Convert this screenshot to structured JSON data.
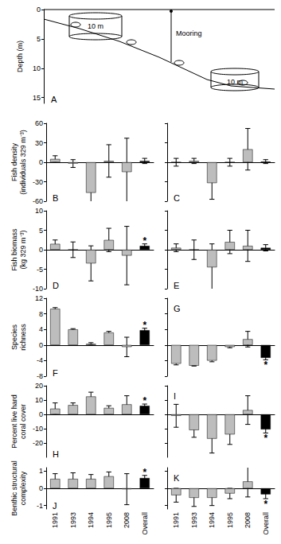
{
  "chart_data": [
    {
      "type": "diagram",
      "title": "A",
      "y_label": "Depth (m)",
      "ylim": [
        0,
        16
      ],
      "yticks": [
        0,
        5,
        10,
        15
      ],
      "annotations": [
        "10 m",
        "10 m",
        "Mooring"
      ],
      "grid": false
    },
    {
      "type": "bar",
      "title": "B",
      "y_label": "Fish density\n(individuals 329 m⁻³)",
      "categories": [
        "1991",
        "1993",
        "1994",
        "1995",
        "2008",
        "Overall"
      ],
      "values": [
        5,
        -2,
        -47,
        2,
        -15,
        2
      ],
      "errors": [
        5,
        6,
        30,
        25,
        52,
        4
      ],
      "colors": [
        "#bdbdbd",
        "#bdbdbd",
        "#bdbdbd",
        "#bdbdbd",
        "#bdbdbd",
        "#000000"
      ],
      "ylim": [
        -60,
        60
      ],
      "yticks": [
        -60,
        -30,
        0,
        30,
        60
      ],
      "grid": false,
      "tick_labels": "y"
    },
    {
      "type": "bar",
      "title": "C",
      "categories": [
        "1991",
        "1993",
        "1994",
        "1995",
        "2008",
        "Overall"
      ],
      "values": [
        0,
        2,
        -32,
        0,
        20,
        1
      ],
      "errors": [
        6,
        4,
        25,
        6,
        32,
        3
      ],
      "colors": [
        "#bdbdbd",
        "#bdbdbd",
        "#bdbdbd",
        "#bdbdbd",
        "#bdbdbd",
        "#000000"
      ],
      "ylim": [
        -60,
        60
      ],
      "yticks": [
        -60,
        -30,
        0,
        30,
        60
      ],
      "grid": false,
      "tick_labels": false
    },
    {
      "type": "bar",
      "title": "D",
      "y_label": "Fish biomass\n(kg 329 m⁻³)",
      "categories": [
        "1991",
        "1993",
        "1994",
        "1995",
        "2008",
        "Overall"
      ],
      "values": [
        1.5,
        0,
        -3.5,
        2.5,
        -1.5,
        1
      ],
      "errors": [
        1,
        2,
        4.5,
        3,
        7.5,
        0.5
      ],
      "colors": [
        "#bdbdbd",
        "#bdbdbd",
        "#bdbdbd",
        "#bdbdbd",
        "#bdbdbd",
        "#000000"
      ],
      "annotations": [
        {
          "category": "Overall",
          "text": "*"
        }
      ],
      "ylim": [
        -10,
        10
      ],
      "yticks": [
        -10,
        -5,
        0,
        5,
        10
      ],
      "grid": false,
      "tick_labels": "y"
    },
    {
      "type": "bar",
      "title": "E",
      "categories": [
        "1991",
        "1993",
        "1994",
        "1995",
        "2008",
        "Overall"
      ],
      "values": [
        0.5,
        0,
        -4.5,
        2,
        1,
        0.5
      ],
      "errors": [
        1,
        2.5,
        6,
        3,
        4,
        0.8
      ],
      "colors": [
        "#bdbdbd",
        "#bdbdbd",
        "#bdbdbd",
        "#bdbdbd",
        "#bdbdbd",
        "#000000"
      ],
      "ylim": [
        -10,
        10
      ],
      "yticks": [
        -10,
        -5,
        0,
        5,
        10
      ],
      "grid": false,
      "tick_labels": false
    },
    {
      "type": "bar",
      "title": "F",
      "y_label": "Species\nrichness",
      "categories": [
        "1991",
        "1993",
        "1994",
        "1995",
        "2008",
        "Overall"
      ],
      "values": [
        9.3,
        4,
        0.3,
        3.2,
        -0.5,
        3.8
      ],
      "errors": [
        0.3,
        0.2,
        0.3,
        0.3,
        2.5,
        0.5
      ],
      "colors": [
        "#bdbdbd",
        "#bdbdbd",
        "#bdbdbd",
        "#bdbdbd",
        "#bdbdbd",
        "#000000"
      ],
      "annotations": [
        {
          "category": "Overall",
          "text": "*"
        }
      ],
      "ylim": [
        -8,
        12
      ],
      "yticks": [
        -8,
        -4,
        0,
        4,
        8,
        12
      ],
      "grid": false,
      "tick_labels": "y"
    },
    {
      "type": "bar",
      "title": "G",
      "categories": [
        "1991",
        "1993",
        "1994",
        "1995",
        "2008",
        "Overall"
      ],
      "values": [
        -4.8,
        -5.3,
        -4,
        -0.5,
        1.5,
        -3.3
      ],
      "errors": [
        0.3,
        0.1,
        0.3,
        0.2,
        2,
        0.5
      ],
      "colors": [
        "#bdbdbd",
        "#bdbdbd",
        "#bdbdbd",
        "#bdbdbd",
        "#bdbdbd",
        "#000000"
      ],
      "annotations": [
        {
          "category": "Overall",
          "text": "*"
        }
      ],
      "ylim": [
        -8,
        12
      ],
      "yticks": [
        -8,
        -4,
        0,
        4,
        8,
        12
      ],
      "grid": false,
      "tick_labels": false
    },
    {
      "type": "bar",
      "title": "H",
      "y_label": "Percent live hard\ncoral cover",
      "categories": [
        "1991",
        "1993",
        "1994",
        "1995",
        "2008",
        "Overall"
      ],
      "values": [
        4,
        6.5,
        12.5,
        4.5,
        7,
        6
      ],
      "errors": [
        4,
        1.5,
        3,
        1.5,
        6,
        1.2
      ],
      "colors": [
        "#bdbdbd",
        "#bdbdbd",
        "#bdbdbd",
        "#bdbdbd",
        "#bdbdbd",
        "#000000"
      ],
      "annotations": [
        {
          "category": "Overall",
          "text": "*"
        }
      ],
      "ylim": [
        -30,
        20
      ],
      "yticks": [
        -20,
        -10,
        0,
        10,
        20
      ],
      "grid": false,
      "tick_labels": "y"
    },
    {
      "type": "bar",
      "title": "I",
      "categories": [
        "1991",
        "1993",
        "1994",
        "1995",
        "2008",
        "Overall"
      ],
      "values": [
        -1,
        -11,
        -17,
        -14,
        3,
        -10.5
      ],
      "errors": [
        8,
        5,
        10,
        7,
        10,
        2.5
      ],
      "colors": [
        "#bdbdbd",
        "#bdbdbd",
        "#bdbdbd",
        "#bdbdbd",
        "#bdbdbd",
        "#000000"
      ],
      "annotations": [
        {
          "category": "Overall",
          "text": "*"
        }
      ],
      "ylim": [
        -30,
        20
      ],
      "yticks": [
        -20,
        -10,
        0,
        10,
        20
      ],
      "grid": false,
      "tick_labels": false
    },
    {
      "type": "bar",
      "title": "J",
      "y_label": "Benthic structural\ncomplexity",
      "categories": [
        "1991",
        "1993",
        "1994",
        "1995",
        "2008",
        "Overall"
      ],
      "values": [
        0.55,
        0.55,
        0.55,
        0.7,
        -0.05,
        0.6
      ],
      "errors": [
        0.3,
        0.35,
        0.25,
        0.25,
        0.9,
        0.15
      ],
      "colors": [
        "#bdbdbd",
        "#bdbdbd",
        "#bdbdbd",
        "#bdbdbd",
        "#bdbdbd",
        "#000000"
      ],
      "annotations": [
        {
          "category": "Overall",
          "text": "*"
        }
      ],
      "ylim": [
        -1.2,
        1.2
      ],
      "yticks": [
        -1,
        0,
        1
      ],
      "grid": false,
      "tick_labels": true
    },
    {
      "type": "bar",
      "title": "K",
      "categories": [
        "1991",
        "1993",
        "1994",
        "1995",
        "2008",
        "Overall"
      ],
      "values": [
        -0.4,
        -0.55,
        -0.55,
        -0.3,
        0.4,
        -0.35
      ],
      "errors": [
        0.4,
        0.5,
        0.45,
        0.3,
        0.9,
        0.25
      ],
      "colors": [
        "#bdbdbd",
        "#bdbdbd",
        "#bdbdbd",
        "#bdbdbd",
        "#bdbdbd",
        "#000000"
      ],
      "annotations": [
        {
          "category": "Overall",
          "text": "*"
        }
      ],
      "ylim": [
        -1.2,
        1.2
      ],
      "yticks": [
        -1,
        0,
        1
      ],
      "grid": false,
      "tick_labels": "x"
    }
  ]
}
